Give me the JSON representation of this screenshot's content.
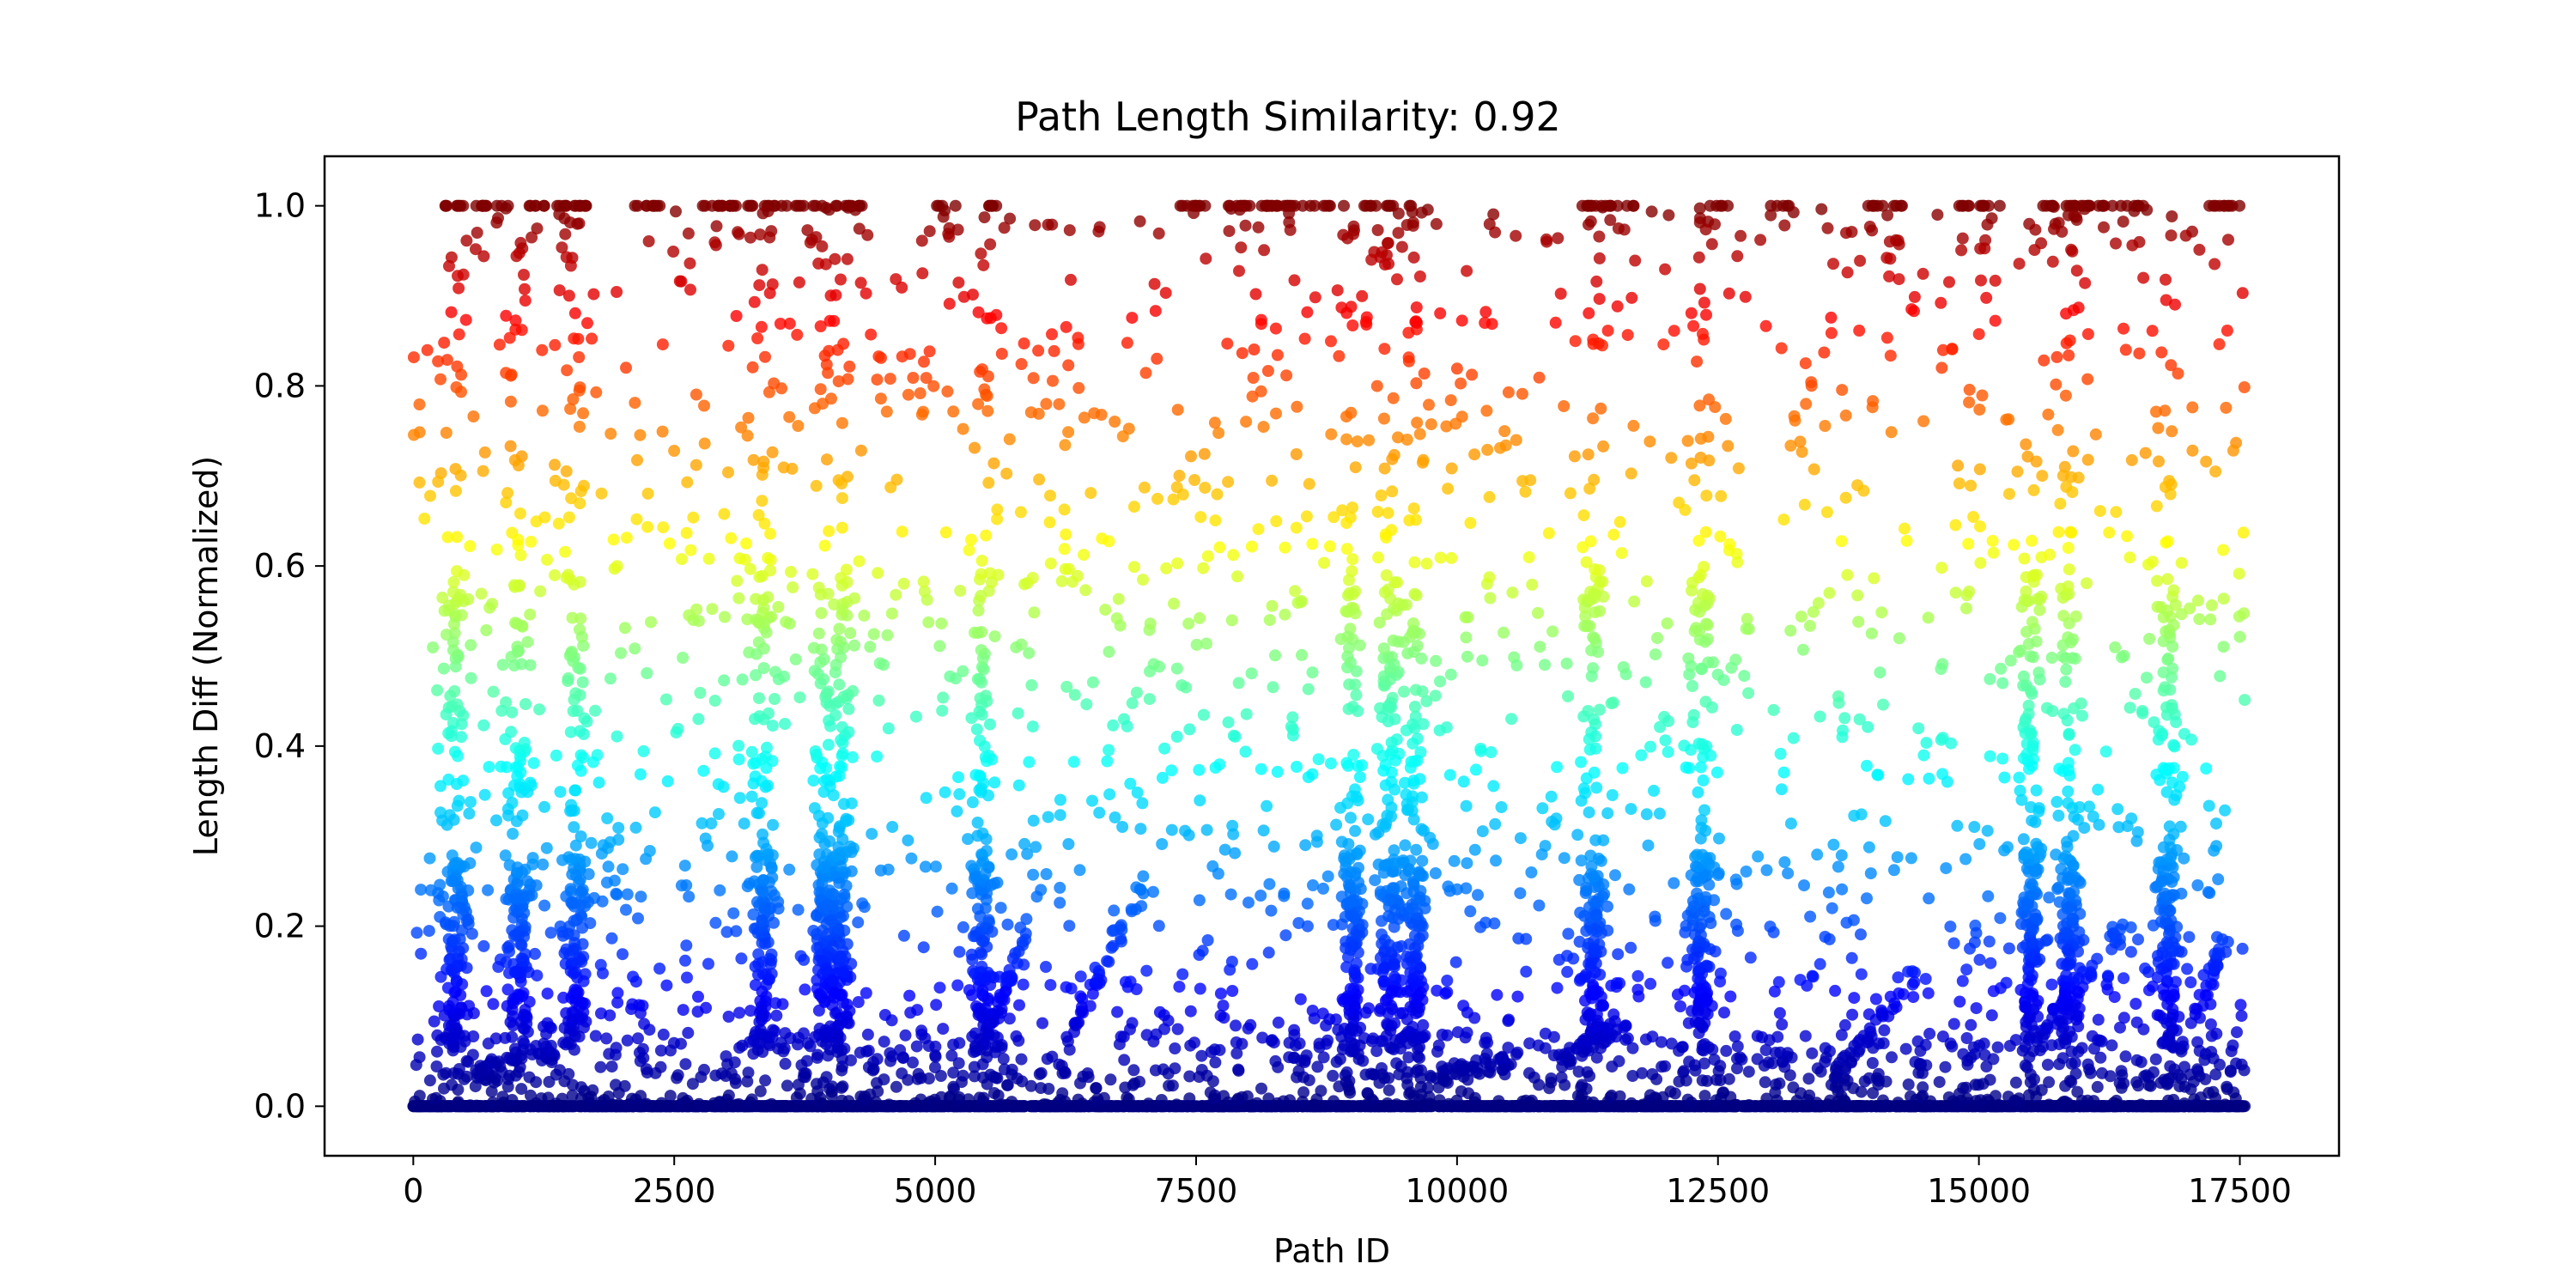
{
  "chart_data": {
    "type": "scatter",
    "title": "Path Length Similarity: 0.92",
    "xlabel": "Path ID",
    "ylabel": "Length Diff (Normalized)",
    "xlim": [
      -850,
      18450
    ],
    "ylim": [
      -0.055,
      1.055
    ],
    "x_ticks": [
      0,
      2500,
      5000,
      7500,
      10000,
      12500,
      15000,
      17500
    ],
    "x_tick_labels": [
      "0",
      "2500",
      "5000",
      "7500",
      "10000",
      "12500",
      "15000",
      "17500"
    ],
    "y_ticks": [
      0.0,
      0.2,
      0.4,
      0.6,
      0.8,
      1.0
    ],
    "y_tick_labels": [
      "0.0",
      "0.2",
      "0.4",
      "0.6",
      "0.8",
      "1.0"
    ],
    "grid": false,
    "legend": "none",
    "colormap": "jet",
    "color_by": "y",
    "marker_color_alpha": 0.8,
    "n_points_approx": 17550,
    "x_range": [
      0,
      17550
    ],
    "point_groups": [
      {
        "name": "baseline",
        "y": 0.0,
        "x_range": [
          0,
          17550
        ],
        "count": 3000
      },
      {
        "name": "capped",
        "y": 1.0,
        "x_clusters": [
          [
            300,
            1700
          ],
          [
            2100,
            2400
          ],
          [
            2750,
            4300
          ],
          [
            5000,
            5200
          ],
          [
            5500,
            5700
          ],
          [
            7300,
            7600
          ],
          [
            7800,
            9000
          ],
          [
            9100,
            9600
          ],
          [
            11200,
            11700
          ],
          [
            12400,
            12600
          ],
          [
            13000,
            13200
          ],
          [
            13900,
            14300
          ],
          [
            14800,
            15200
          ],
          [
            15500,
            16600
          ],
          [
            17200,
            17500
          ]
        ]
      },
      {
        "name": "dense-columns",
        "x_centers": [
          400,
          1000,
          1550,
          3350,
          3950,
          4100,
          5450,
          9000,
          9350,
          9600,
          11300,
          12350,
          15500,
          15850,
          16800
        ]
      }
    ]
  }
}
